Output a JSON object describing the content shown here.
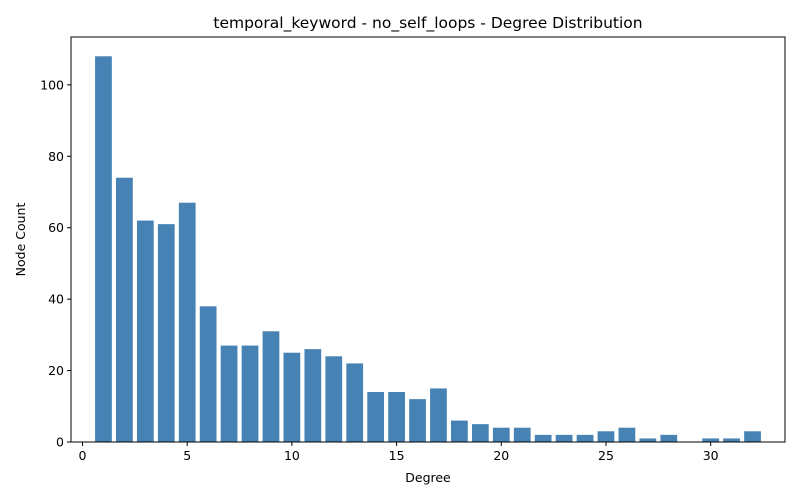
{
  "chart_data": {
    "type": "bar",
    "title": "temporal_keyword - no_self_loops - Degree Distribution",
    "xlabel": "Degree",
    "ylabel": "Node Count",
    "x": [
      1,
      2,
      3,
      4,
      5,
      6,
      7,
      8,
      9,
      10,
      11,
      12,
      13,
      14,
      15,
      16,
      17,
      18,
      19,
      20,
      21,
      22,
      23,
      24,
      25,
      26,
      27,
      28,
      30,
      31,
      32
    ],
    "values": [
      108,
      74,
      62,
      61,
      67,
      38,
      27,
      27,
      31,
      25,
      26,
      24,
      22,
      14,
      14,
      12,
      15,
      6,
      5,
      4,
      4,
      2,
      2,
      2,
      3,
      4,
      1,
      2,
      1,
      1,
      3
    ],
    "xlim": [
      -0.55,
      33.55
    ],
    "ylim": [
      0,
      113.4
    ],
    "xticks": [
      0,
      5,
      10,
      15,
      20,
      25,
      30
    ],
    "yticks": [
      0,
      20,
      40,
      60,
      80,
      100
    ],
    "bar_color": "#4682b4",
    "grid": false,
    "legend": "none"
  }
}
